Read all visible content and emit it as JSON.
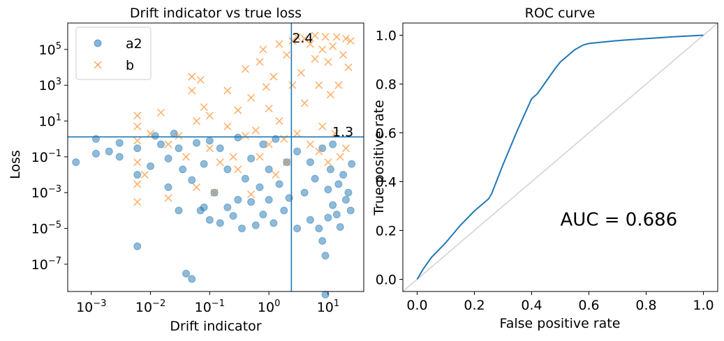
{
  "chart_data": [
    {
      "type": "scatter",
      "title": "Drift indicator vs true loss",
      "xlabel": "Drift indicator",
      "ylabel": "Loss",
      "xscale": "log",
      "yscale": "log",
      "xlim": [
        0.0004,
        40
      ],
      "ylim": [
        3e-09,
        3000000.0
      ],
      "legend": {
        "placement": "top-left"
      },
      "grid": false,
      "x_ticks": [
        {
          "value": 0.001,
          "base": "10",
          "exp": "−3"
        },
        {
          "value": 0.01,
          "base": "10",
          "exp": "−2"
        },
        {
          "value": 0.1,
          "base": "10",
          "exp": "−1"
        },
        {
          "value": 1,
          "base": "10",
          "exp": "0"
        },
        {
          "value": 10,
          "base": "10",
          "exp": "1"
        }
      ],
      "y_ticks": [
        {
          "value": 1e-07,
          "base": "10",
          "exp": "−7"
        },
        {
          "value": 1e-05,
          "base": "10",
          "exp": "−5"
        },
        {
          "value": 0.001,
          "base": "10",
          "exp": "−3"
        },
        {
          "value": 0.1,
          "base": "10",
          "exp": "−1"
        },
        {
          "value": 10,
          "base": "10",
          "exp": "1"
        },
        {
          "value": 1000,
          "base": "10",
          "exp": "3"
        },
        {
          "value": 100000,
          "base": "10",
          "exp": "5"
        }
      ],
      "threshold_lines": [
        {
          "orientation": "vertical",
          "value": 2.4,
          "label": "2.4"
        },
        {
          "orientation": "horizontal",
          "value": 1.3,
          "label": "1.3"
        }
      ],
      "series": [
        {
          "name": "a2",
          "marker": "circle",
          "color": "#1f77b4",
          "points": [
            [
              0.00055,
              0.05
            ],
            [
              0.0012,
              1.0
            ],
            [
              0.0012,
              0.15
            ],
            [
              0.002,
              0.2
            ],
            [
              0.003,
              0.1
            ],
            [
              0.003,
              0.6
            ],
            [
              0.006,
              0.3
            ],
            [
              0.006,
              1e-06
            ],
            [
              0.006,
              0.01
            ],
            [
              0.01,
              0.03
            ],
            [
              0.012,
              1.5
            ],
            [
              0.015,
              0.5
            ],
            [
              0.02,
              0.002
            ],
            [
              0.02,
              0.08
            ],
            [
              0.025,
              2.0
            ],
            [
              0.03,
              0.0001
            ],
            [
              0.03,
              0.3
            ],
            [
              0.035,
              0.02
            ],
            [
              0.04,
              3e-08
            ],
            [
              0.05,
              1.5e-08
            ],
            [
              0.05,
              0.005
            ],
            [
              0.06,
              0.6
            ],
            [
              0.07,
              0.0001
            ],
            [
              0.08,
              0.00015
            ],
            [
              0.08,
              0.04
            ],
            [
              0.1,
              3e-05
            ],
            [
              0.1,
              0.8
            ],
            [
              0.12,
              0.001
            ],
            [
              0.15,
              2e-05
            ],
            [
              0.15,
              0.3
            ],
            [
              0.2,
              0.00015
            ],
            [
              0.2,
              0.02
            ],
            [
              0.25,
              5e-05
            ],
            [
              0.3,
              1.2
            ],
            [
              0.3,
              0.0004
            ],
            [
              0.35,
              1e-05
            ],
            [
              0.4,
              0.006
            ],
            [
              0.5,
              0.0003
            ],
            [
              0.5,
              0.08
            ],
            [
              0.6,
              1.5e-05
            ],
            [
              0.7,
              0.002
            ],
            [
              0.8,
              6e-05
            ],
            [
              0.8,
              0.5
            ],
            [
              1.0,
              0.0004
            ],
            [
              1.0,
              0.02
            ],
            [
              1.2,
              2e-05
            ],
            [
              1.3,
              1.0
            ],
            [
              1.5,
              0.003
            ],
            [
              1.8,
              0.0001
            ],
            [
              2.0,
              0.05
            ],
            [
              2.2,
              0.0005
            ],
            [
              3.0,
              1e-05
            ],
            [
              3.0,
              0.2
            ],
            [
              4.0,
              0.001
            ],
            [
              5.0,
              3e-05
            ],
            [
              5.0,
              0.05
            ],
            [
              6.0,
              0.006
            ],
            [
              7.0,
              1e-05
            ],
            [
              8.0,
              2e-06
            ],
            [
              8.0,
              0.3
            ],
            [
              9.0,
              3e-07
            ],
            [
              9.0,
              2e-09
            ],
            [
              10,
              0.0015
            ],
            [
              10,
              4e-05
            ],
            [
              11,
              0.02
            ],
            [
              12,
              0.0002
            ],
            [
              12,
              0.5
            ],
            [
              14,
              6e-05
            ],
            [
              15,
              0.003
            ],
            [
              16,
              1.2e-05
            ],
            [
              18,
              0.01
            ],
            [
              20,
              0.0004
            ],
            [
              22,
              0.001
            ],
            [
              24,
              0.0001
            ],
            [
              25,
              0.04
            ]
          ]
        },
        {
          "name": "b",
          "marker": "x",
          "color": "#ff7f0e",
          "points": [
            [
              0.006,
              20
            ],
            [
              0.006,
              5
            ],
            [
              0.006,
              0.8
            ],
            [
              0.006,
              0.05
            ],
            [
              0.006,
              0.003
            ],
            [
              0.006,
              0.0003
            ],
            [
              0.008,
              0.01
            ],
            [
              0.01,
              2.0
            ],
            [
              0.015,
              30
            ],
            [
              0.02,
              0.5
            ],
            [
              0.02,
              0.0005
            ],
            [
              0.03,
              1.5
            ],
            [
              0.04,
              0.1
            ],
            [
              0.05,
              3000
            ],
            [
              0.05,
              500
            ],
            [
              0.06,
              10
            ],
            [
              0.06,
              0.002
            ],
            [
              0.07,
              2000
            ],
            [
              0.08,
              60
            ],
            [
              0.1,
              20
            ],
            [
              0.1,
              0.3
            ],
            [
              0.12,
              0.001
            ],
            [
              0.15,
              0.05
            ],
            [
              0.2,
              5
            ],
            [
              0.2,
              500
            ],
            [
              0.25,
              0.1
            ],
            [
              0.3,
              40
            ],
            [
              0.3,
              0.02
            ],
            [
              0.4,
              8000
            ],
            [
              0.4,
              1.5
            ],
            [
              0.5,
              200
            ],
            [
              0.5,
              0.0008
            ],
            [
              0.6,
              3
            ],
            [
              0.7,
              20000
            ],
            [
              0.7,
              0.1
            ],
            [
              0.8,
              100000
            ],
            [
              0.9,
              800
            ],
            [
              1.0,
              50
            ],
            [
              1.0,
              0.5
            ],
            [
              1.2,
              3000
            ],
            [
              1.3,
              0.01
            ],
            [
              1.5,
              200000
            ],
            [
              1.5,
              10
            ],
            [
              1.8,
              1.0
            ],
            [
              2.0,
              50000
            ],
            [
              2.0,
              0.05
            ],
            [
              2.5,
              300000
            ],
            [
              2.5,
              1000
            ],
            [
              3.0,
              500000
            ],
            [
              3.0,
              2.0
            ],
            [
              3.5,
              5000
            ],
            [
              4.0,
              400000
            ],
            [
              4.0,
              100
            ],
            [
              5.0,
              200000
            ],
            [
              5.0,
              0.5
            ],
            [
              6.0,
              30000
            ],
            [
              6.0,
              600000
            ],
            [
              7.0,
              1000
            ],
            [
              7.0,
              0.2
            ],
            [
              8.0,
              100000
            ],
            [
              8.0,
              5
            ],
            [
              9.0,
              500000
            ],
            [
              10,
              20000
            ],
            [
              10,
              0.05
            ],
            [
              11,
              300
            ],
            [
              12,
              150000
            ],
            [
              13,
              2.0
            ],
            [
              14,
              500000
            ],
            [
              15,
              1000
            ],
            [
              16,
              0.1
            ],
            [
              18,
              50000
            ],
            [
              20,
              400000
            ],
            [
              20,
              0.3
            ],
            [
              22,
              10000
            ],
            [
              24,
              300000
            ]
          ]
        }
      ]
    },
    {
      "type": "line",
      "title": "ROC curve",
      "xlabel": "False positive rate",
      "ylabel": "True positive rate",
      "xlim": [
        -0.05,
        1.05
      ],
      "ylim": [
        -0.05,
        1.05
      ],
      "grid": false,
      "x_ticks": [
        "0.0",
        "0.2",
        "0.4",
        "0.6",
        "0.8",
        "1.0"
      ],
      "y_ticks": [
        "0.0",
        "0.2",
        "0.4",
        "0.6",
        "0.8",
        "1.0"
      ],
      "annotation": "AUC = 0.686",
      "annotation_position": [
        0.5,
        0.22
      ],
      "series": [
        {
          "color": "#1f77b4",
          "x": [
            0.0,
            0.02,
            0.05,
            0.1,
            0.15,
            0.2,
            0.25,
            0.26,
            0.3,
            0.35,
            0.4,
            0.42,
            0.45,
            0.48,
            0.5,
            0.52,
            0.55,
            0.58,
            0.6,
            0.65,
            0.7,
            0.8,
            0.9,
            1.0
          ],
          "y": [
            0.0,
            0.04,
            0.09,
            0.15,
            0.22,
            0.28,
            0.33,
            0.35,
            0.47,
            0.61,
            0.74,
            0.76,
            0.81,
            0.86,
            0.89,
            0.91,
            0.94,
            0.96,
            0.966,
            0.972,
            0.978,
            0.986,
            0.994,
            1.0
          ]
        },
        {
          "color": "#d3d3d3",
          "x": [
            -0.05,
            1.05
          ],
          "y": [
            -0.05,
            1.05
          ]
        }
      ]
    }
  ]
}
